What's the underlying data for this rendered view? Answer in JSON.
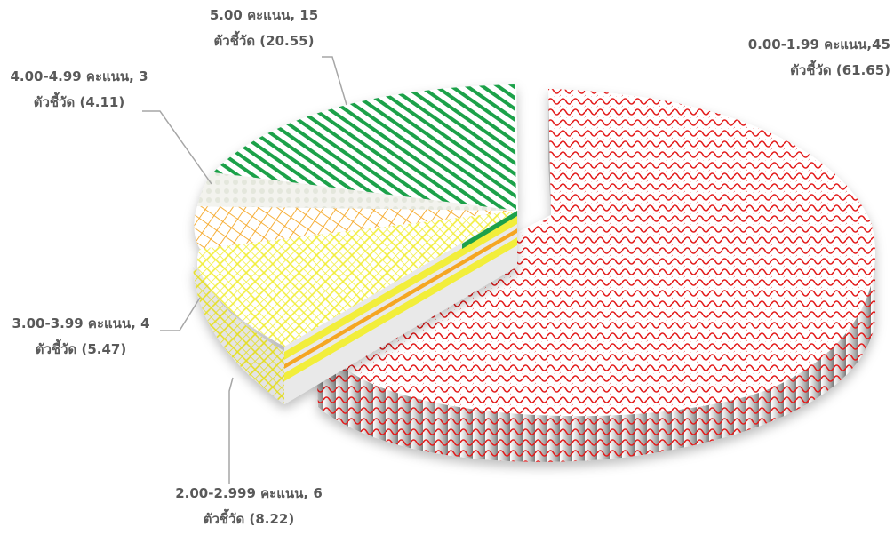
{
  "chart_data": {
    "type": "pie",
    "style": "3d-exploded",
    "slices": [
      {
        "category": "0.00-1.99 คะแนน",
        "count": 45,
        "percent": 61.65,
        "color": "#e31b1b",
        "pattern": "scales",
        "label_line1": "0.00-1.99 คะแนน,45",
        "label_line2": "ตัวชี้วัด (61.65)"
      },
      {
        "category": "2.00-2.999 คะแนน",
        "count": 6,
        "percent": 8.22,
        "color": "#f2ee3a",
        "pattern": "diagonal-lattice",
        "label_line1": "2.00-2.999 คะแนน, 6",
        "label_line2": "ตัวชี้วัด  (8.22)"
      },
      {
        "category": "3.00-3.99 คะแนน",
        "count": 4,
        "percent": 5.47,
        "color": "#f2ee3a",
        "pattern": "diagonal-lattice",
        "label_line1": "3.00-3.99 คะแนน, 4",
        "label_line2": "ตัวชี้วัด (5.47)"
      },
      {
        "category": "4.00-4.99 คะแนน",
        "count": 3,
        "percent": 4.11,
        "color": "#f5a623",
        "pattern": "grid",
        "label_line1": "4.00-4.99 คะแนน, 3",
        "label_line2": "ตัวชี้วัด (4.11)"
      },
      {
        "category": "5.00 คะแนน",
        "count": 15,
        "percent": 20.55,
        "color": "#1aa14a",
        "pattern": "diagonal-stripes",
        "label_line1": "5.00  คะแนน, 15",
        "label_line2": "ตัวชี้วัด (20.55)"
      }
    ],
    "legend": "none"
  }
}
